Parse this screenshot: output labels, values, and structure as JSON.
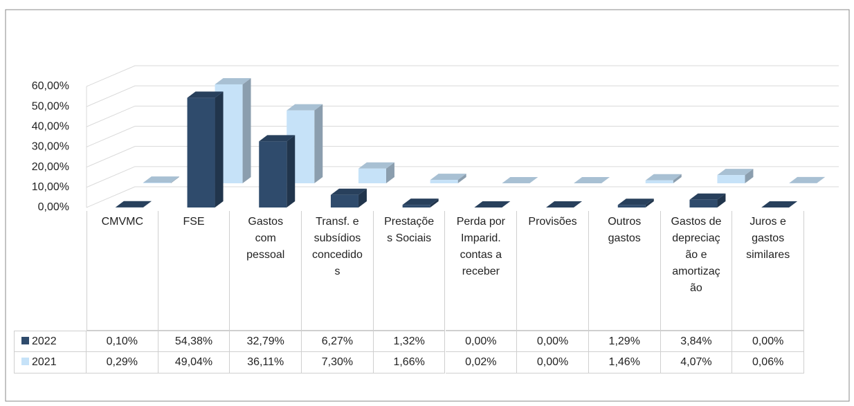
{
  "chart_data": {
    "type": "bar3d",
    "categories": [
      "CMVMC",
      "FSE",
      "Gastos com pessoal",
      "Transf. e subsídios concedidos",
      "Prestações Sociais",
      "Perda por Imparid. contas a receber",
      "Provisões",
      "Outros gastos",
      "Gastos de depreciação e amortização",
      "Juros e gastos similares"
    ],
    "series": [
      {
        "name": "2022",
        "color": "#2f4b6c",
        "values": [
          0.1,
          54.38,
          32.79,
          6.27,
          1.32,
          0.0,
          0.0,
          1.29,
          3.84,
          0.0
        ],
        "value_labels": [
          "0,10%",
          "54,38%",
          "32,79%",
          "6,27%",
          "1,32%",
          "0,00%",
          "0,00%",
          "1,29%",
          "3,84%",
          "0,00%"
        ]
      },
      {
        "name": "2021",
        "color": "#c6e2f8",
        "values": [
          0.29,
          49.04,
          36.11,
          7.3,
          1.66,
          0.02,
          0.0,
          1.46,
          4.07,
          0.06
        ],
        "value_labels": [
          "0,29%",
          "49,04%",
          "36,11%",
          "7,30%",
          "1,66%",
          "0,02%",
          "0,00%",
          "1,46%",
          "4,07%",
          "0,06%"
        ]
      }
    ],
    "ylim": [
      0,
      60
    ],
    "yticks": [
      {
        "value": 0,
        "label": "0,00%"
      },
      {
        "value": 10,
        "label": "10,00%"
      },
      {
        "value": 20,
        "label": "20,00%"
      },
      {
        "value": 30,
        "label": "30,00%"
      },
      {
        "value": 40,
        "label": "40,00%"
      },
      {
        "value": 50,
        "label": "50,00%"
      },
      {
        "value": 60,
        "label": "60,00%"
      }
    ],
    "grid": true
  }
}
